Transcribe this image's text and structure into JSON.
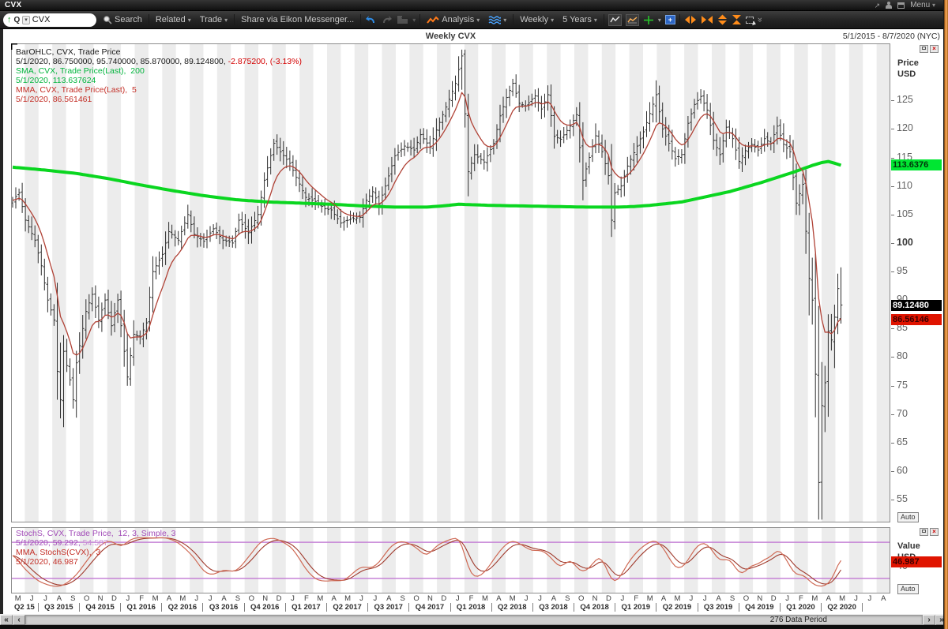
{
  "window": {
    "title": "CVX",
    "menu_label": "Menu"
  },
  "toolbar": {
    "quote_type": "Q",
    "symbol_input": "CVX",
    "search_label": "Search",
    "related_label": "Related",
    "trade_label": "Trade",
    "share_label": "Share via Eikon Messenger...",
    "analysis_label": "Analysis",
    "interval_label": "Weekly",
    "range_label": "5 Years"
  },
  "chart": {
    "title": "Weekly CVX",
    "date_range": "5/1/2015 - 8/7/2020 (NYC)",
    "status": "276 Data Period",
    "legend_main": [
      {
        "parts": [
          {
            "t": "BarOHLC, CVX, Trade Price",
            "c": "#1a1a1a"
          }
        ]
      },
      {
        "parts": [
          {
            "t": "5/1/2020, 86.750000, 95.740000, 85.870000, 89.124800, ",
            "c": "#1a1a1a"
          },
          {
            "t": "-2.875200, (-3.13%)",
            "c": "#d40000"
          }
        ]
      },
      {
        "parts": [
          {
            "t": "SMA, CVX, Trade Price(Last),  200",
            "c": "#00b43c"
          }
        ]
      },
      {
        "parts": [
          {
            "t": "5/1/2020, 113.637624",
            "c": "#00b43c"
          }
        ]
      },
      {
        "parts": [
          {
            "t": "MMA, CVX, Trade Price(Last),  5",
            "c": "#c43028"
          }
        ]
      },
      {
        "parts": [
          {
            "t": "5/1/2020, 86.561461",
            "c": "#c43028"
          }
        ]
      }
    ],
    "legend_stoch": [
      {
        "parts": [
          {
            "t": "StochS, CVX, Trade Price,  12, 3, Simple, 3",
            "c": "#a24cb8"
          }
        ]
      },
      {
        "parts": [
          {
            "t": "5/1/2020, 59.292, ",
            "c": "#a24cb8"
          },
          {
            "t": "54.587",
            "c": "#c98fd6"
          }
        ]
      },
      {
        "parts": [
          {
            "t": "MMA, StochS(CVX),  3",
            "c": "#c43028"
          }
        ]
      },
      {
        "parts": [
          {
            "t": "5/1/2020, 46.987",
            "c": "#c43028"
          }
        ]
      }
    ],
    "price_axis": {
      "label1": "Price",
      "label2": "USD",
      "auto_label": "Auto",
      "ticks": [
        125,
        120,
        115,
        110,
        105,
        100,
        95,
        90,
        85,
        80,
        75,
        70,
        65,
        60,
        55
      ],
      "bold_tick": 100,
      "badges": [
        {
          "value": "113.6376",
          "bg": "#00e632",
          "fg": "#00320a",
          "price": 113.637624
        },
        {
          "value": "89.12480",
          "bg": "#000000",
          "fg": "#ffffff",
          "price": 89.1248
        },
        {
          "value": "86.56146",
          "bg": "#e01400",
          "fg": "#3c0000",
          "price": 86.561461
        }
      ]
    },
    "value_axis": {
      "label1": "Value",
      "label2": "USD",
      "auto_label": "Auto",
      "tick": 40,
      "badge": {
        "value": "46.987",
        "bg": "#e01400",
        "fg": "#3c0000",
        "level": 46.987
      }
    },
    "x_axis": {
      "months": [
        "M",
        "J",
        "J",
        "A",
        "S",
        "O",
        "N",
        "D",
        "J",
        "F",
        "M",
        "A",
        "M",
        "J",
        "J",
        "A",
        "S",
        "O",
        "N",
        "D",
        "J",
        "F",
        "M",
        "A",
        "M",
        "J",
        "J",
        "A",
        "S",
        "O",
        "N",
        "D",
        "J",
        "F",
        "M",
        "A",
        "M",
        "J",
        "J",
        "A",
        "S",
        "O",
        "N",
        "D",
        "J",
        "F",
        "M",
        "A",
        "M",
        "J",
        "J",
        "A",
        "S",
        "O",
        "N",
        "D",
        "J",
        "F",
        "M",
        "A",
        "M",
        "J",
        "J",
        "A"
      ],
      "quarters": [
        "Q2 15",
        "Q3 2015",
        "Q4 2015",
        "Q1 2016",
        "Q2 2016",
        "Q3 2016",
        "Q4 2016",
        "Q1 2017",
        "Q2 2017",
        "Q3 2017",
        "Q4 2017",
        "Q1 2018",
        "Q2 2018",
        "Q3 2018",
        "Q4 2018",
        "Q1 2019",
        "Q2 2019",
        "Q3 2019",
        "Q4 2019",
        "Q1 2020",
        "Q2 2020"
      ]
    }
  },
  "chart_data": {
    "type": "ohlc-weekly",
    "symbol": "CVX",
    "interval": "Weekly",
    "weeks": 261,
    "plot_weeks": 276,
    "price_range": [
      51,
      135
    ],
    "last_bar": {
      "date": "5/1/2020",
      "open": 86.75,
      "high": 95.74,
      "low": 85.87,
      "close": 89.1248,
      "change": -2.8752,
      "change_pct": "-3.13%"
    },
    "sma200_last": 113.637624,
    "mma5_last": 86.561461,
    "close_anchors": [
      [
        0,
        107.5
      ],
      [
        2,
        108.8
      ],
      [
        4,
        104.0
      ],
      [
        7,
        100.5
      ],
      [
        9,
        96.0
      ],
      [
        11,
        90.0
      ],
      [
        13,
        86.5
      ],
      [
        14,
        77.5
      ],
      [
        15,
        72.5
      ],
      [
        16,
        81.0
      ],
      [
        18,
        76.0
      ],
      [
        19,
        72.5
      ],
      [
        20,
        79.0
      ],
      [
        23,
        88.0
      ],
      [
        25,
        91.0
      ],
      [
        27,
        86.5
      ],
      [
        29,
        90.0
      ],
      [
        31,
        85.5
      ],
      [
        33,
        90.0
      ],
      [
        35,
        81.0
      ],
      [
        36,
        76.5
      ],
      [
        38,
        84.0
      ],
      [
        40,
        83.5
      ],
      [
        42,
        86.0
      ],
      [
        44,
        95.0
      ],
      [
        47,
        98.0
      ],
      [
        49,
        102.0
      ],
      [
        52,
        100.5
      ],
      [
        55,
        105.0
      ],
      [
        57,
        101.5
      ],
      [
        60,
        100.3
      ],
      [
        63,
        102.5
      ],
      [
        66,
        100.5
      ],
      [
        69,
        100.0
      ],
      [
        71,
        104.0
      ],
      [
        74,
        101.8
      ],
      [
        77,
        105.0
      ],
      [
        79,
        111.0
      ],
      [
        82,
        117.5
      ],
      [
        84,
        116.0
      ],
      [
        87,
        114.0
      ],
      [
        89,
        111.5
      ],
      [
        92,
        108.0
      ],
      [
        95,
        107.3
      ],
      [
        98,
        106.0
      ],
      [
        100,
        105.8
      ],
      [
        103,
        103.5
      ],
      [
        106,
        104.2
      ],
      [
        109,
        104.5
      ],
      [
        111,
        107.5
      ],
      [
        113,
        109.0
      ],
      [
        115,
        106.8
      ],
      [
        117,
        110.0
      ],
      [
        120,
        115.3
      ],
      [
        123,
        117.0
      ],
      [
        126,
        116.3
      ],
      [
        128,
        119.0
      ],
      [
        131,
        116.8
      ],
      [
        133,
        119.8
      ],
      [
        135,
        122.5
      ],
      [
        137,
        125.2
      ],
      [
        139,
        128.0
      ],
      [
        141,
        132.8
      ],
      [
        143,
        112.5
      ],
      [
        145,
        115.5
      ],
      [
        148,
        114.2
      ],
      [
        151,
        117.5
      ],
      [
        153,
        122.3
      ],
      [
        155,
        125.5
      ],
      [
        157,
        128.0
      ],
      [
        159,
        124.5
      ],
      [
        161,
        124.0
      ],
      [
        164,
        125.8
      ],
      [
        166,
        123.5
      ],
      [
        168,
        126.0
      ],
      [
        170,
        118.7
      ],
      [
        172,
        118.2
      ],
      [
        175,
        120.5
      ],
      [
        177,
        122.5
      ],
      [
        179,
        111.0
      ],
      [
        181,
        115.0
      ],
      [
        183,
        118.8
      ],
      [
        185,
        116.0
      ],
      [
        187,
        111.8
      ],
      [
        188,
        104.0
      ],
      [
        189,
        108.8
      ],
      [
        191,
        110.0
      ],
      [
        193,
        113.5
      ],
      [
        196,
        117.0
      ],
      [
        198,
        119.5
      ],
      [
        200,
        122.7
      ],
      [
        202,
        126.0
      ],
      [
        204,
        120.0
      ],
      [
        206,
        117.5
      ],
      [
        208,
        114.8
      ],
      [
        210,
        115.5
      ],
      [
        212,
        121.0
      ],
      [
        214,
        124.3
      ],
      [
        216,
        125.7
      ],
      [
        218,
        123.3
      ],
      [
        220,
        118.0
      ],
      [
        222,
        115.5
      ],
      [
        224,
        120.3
      ],
      [
        226,
        118.3
      ],
      [
        228,
        114.3
      ],
      [
        230,
        116.2
      ],
      [
        232,
        117.3
      ],
      [
        234,
        116.3
      ],
      [
        236,
        118.3
      ],
      [
        238,
        117.5
      ],
      [
        240,
        120.5
      ],
      [
        242,
        117.3
      ],
      [
        244,
        116.0
      ],
      [
        246,
        107.0
      ],
      [
        248,
        110.3
      ],
      [
        250,
        93.8
      ],
      [
        251,
        90.0
      ],
      [
        252,
        77.0
      ],
      [
        253,
        58.0
      ],
      [
        254,
        71.5
      ],
      [
        255,
        75.5
      ],
      [
        256,
        84.5
      ],
      [
        257,
        83.0
      ],
      [
        258,
        87.0
      ],
      [
        259,
        92.0
      ],
      [
        260,
        89.1248
      ]
    ],
    "volatility_boost": [
      [
        14,
        4
      ],
      [
        15,
        5
      ],
      [
        16,
        3
      ],
      [
        141,
        3
      ],
      [
        143,
        6
      ],
      [
        179,
        3
      ],
      [
        188,
        3
      ],
      [
        202,
        3
      ],
      [
        250,
        5
      ],
      [
        251,
        6
      ],
      [
        252,
        9
      ],
      [
        253,
        13
      ],
      [
        254,
        8
      ],
      [
        255,
        5
      ],
      [
        256,
        4
      ],
      [
        257,
        3
      ],
      [
        258,
        3
      ],
      [
        259,
        3
      ],
      [
        260,
        4
      ]
    ],
    "sma200_anchors": [
      [
        0,
        113.3
      ],
      [
        10,
        112.8
      ],
      [
        20,
        112.2
      ],
      [
        30,
        111.3
      ],
      [
        40,
        110.2
      ],
      [
        50,
        109.2
      ],
      [
        60,
        108.3
      ],
      [
        70,
        107.6
      ],
      [
        80,
        107.2
      ],
      [
        90,
        107.0
      ],
      [
        100,
        106.8
      ],
      [
        110,
        106.5
      ],
      [
        120,
        106.3
      ],
      [
        130,
        106.3
      ],
      [
        135,
        106.5
      ],
      [
        140,
        106.8
      ],
      [
        150,
        106.6
      ],
      [
        160,
        106.5
      ],
      [
        170,
        106.4
      ],
      [
        180,
        106.3
      ],
      [
        190,
        106.3
      ],
      [
        195,
        106.4
      ],
      [
        200,
        106.6
      ],
      [
        210,
        107.2
      ],
      [
        215,
        107.8
      ],
      [
        220,
        108.4
      ],
      [
        225,
        109.0
      ],
      [
        230,
        109.8
      ],
      [
        235,
        110.6
      ],
      [
        240,
        111.5
      ],
      [
        245,
        112.4
      ],
      [
        248,
        113.0
      ],
      [
        251,
        113.6
      ],
      [
        254,
        114.1
      ],
      [
        256,
        114.3
      ],
      [
        258,
        114.0
      ],
      [
        260,
        113.637624
      ]
    ],
    "stoch": {
      "params": "12, 3, Simple, 3",
      "range": [
        -5,
        105
      ],
      "levels": [
        80,
        20
      ],
      "k_last": 59.292,
      "d_last": 54.587,
      "mma_last": 46.987,
      "anchors": [
        [
          0,
          62
        ],
        [
          3,
          40
        ],
        [
          8,
          15
        ],
        [
          13,
          6
        ],
        [
          16,
          8
        ],
        [
          20,
          25
        ],
        [
          24,
          55
        ],
        [
          28,
          78
        ],
        [
          31,
          84
        ],
        [
          34,
          70
        ],
        [
          37,
          86
        ],
        [
          40,
          88
        ],
        [
          44,
          87
        ],
        [
          48,
          88
        ],
        [
          52,
          80
        ],
        [
          57,
          55
        ],
        [
          60,
          30
        ],
        [
          63,
          25
        ],
        [
          66,
          35
        ],
        [
          70,
          30
        ],
        [
          74,
          55
        ],
        [
          78,
          83
        ],
        [
          82,
          88
        ],
        [
          85,
          80
        ],
        [
          88,
          70
        ],
        [
          92,
          35
        ],
        [
          95,
          18
        ],
        [
          98,
          15
        ],
        [
          101,
          17
        ],
        [
          104,
          15
        ],
        [
          107,
          30
        ],
        [
          110,
          42
        ],
        [
          112,
          35
        ],
        [
          115,
          45
        ],
        [
          118,
          70
        ],
        [
          121,
          82
        ],
        [
          124,
          80
        ],
        [
          127,
          70
        ],
        [
          130,
          55
        ],
        [
          133,
          75
        ],
        [
          136,
          82
        ],
        [
          139,
          88
        ],
        [
          141,
          85
        ],
        [
          143,
          30
        ],
        [
          146,
          20
        ],
        [
          149,
          35
        ],
        [
          152,
          60
        ],
        [
          155,
          78
        ],
        [
          157,
          84
        ],
        [
          160,
          75
        ],
        [
          163,
          65
        ],
        [
          166,
          68
        ],
        [
          169,
          55
        ],
        [
          172,
          35
        ],
        [
          175,
          55
        ],
        [
          178,
          30
        ],
        [
          181,
          35
        ],
        [
          184,
          60
        ],
        [
          186,
          45
        ],
        [
          188,
          12
        ],
        [
          190,
          15
        ],
        [
          193,
          45
        ],
        [
          196,
          65
        ],
        [
          199,
          78
        ],
        [
          202,
          85
        ],
        [
          205,
          65
        ],
        [
          208,
          35
        ],
        [
          211,
          40
        ],
        [
          214,
          70
        ],
        [
          217,
          82
        ],
        [
          220,
          65
        ],
        [
          222,
          45
        ],
        [
          224,
          55
        ],
        [
          226,
          48
        ],
        [
          228,
          25
        ],
        [
          230,
          30
        ],
        [
          232,
          45
        ],
        [
          234,
          40
        ],
        [
          236,
          55
        ],
        [
          238,
          52
        ],
        [
          240,
          72
        ],
        [
          242,
          60
        ],
        [
          244,
          40
        ],
        [
          246,
          22
        ],
        [
          248,
          30
        ],
        [
          250,
          15
        ],
        [
          252,
          8
        ],
        [
          254,
          6
        ],
        [
          256,
          10
        ],
        [
          258,
          25
        ],
        [
          260,
          59.292
        ]
      ]
    }
  },
  "colors": {
    "bar": "#2e2e2e",
    "sma200": "#0ad620",
    "mma5": "#b04236",
    "stoch_k": "#cf6a55",
    "stoch_d": "#a03a2c",
    "stoch_level": "#c583d6",
    "stripe": "#ececec",
    "plot_border": "#8c8c8c"
  }
}
